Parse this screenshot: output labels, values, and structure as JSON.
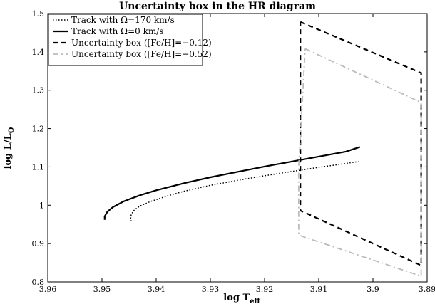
{
  "chart_data": {
    "type": "line",
    "title": "Uncertainty box in the HR diagram",
    "xlabel": "log T",
    "xlabel_sub": "eff",
    "ylabel": "log L/L",
    "ylabel_sub": "O",
    "xlim": [
      3.96,
      3.89
    ],
    "ylim": [
      0.8,
      1.5
    ],
    "x_reversed": true,
    "grid": false,
    "legend_position": "top-left",
    "x_ticks": [
      3.96,
      3.95,
      3.94,
      3.93,
      3.92,
      3.91,
      3.9,
      3.89
    ],
    "x_tick_labels": [
      "3.96",
      "3.95",
      "3.94",
      "3.93",
      "3.92",
      "3.91",
      "3.9",
      "3.89"
    ],
    "y_ticks": [
      0.8,
      0.9,
      1.0,
      1.1,
      1.2,
      1.3,
      1.4,
      1.5
    ],
    "y_tick_labels": [
      "0.8",
      "0.9",
      "1",
      "1.1",
      "1.2",
      "1.3",
      "1.4",
      "1.5"
    ],
    "series": [
      {
        "name": "Track with Ω=170 km/s",
        "style": "dotted",
        "color": "#000000",
        "x": [
          3.9446,
          3.9447,
          3.9446,
          3.944,
          3.943,
          3.941,
          3.938,
          3.935,
          3.93,
          3.925,
          3.92,
          3.915,
          3.91,
          3.905,
          3.9027
        ],
        "y": [
          0.958,
          0.966,
          0.976,
          0.988,
          0.998,
          1.01,
          1.024,
          1.036,
          1.052,
          1.065,
          1.077,
          1.088,
          1.099,
          1.109,
          1.114
        ]
      },
      {
        "name": "Track with Ω=0 km/s",
        "style": "solid",
        "color": "#000000",
        "x": [
          3.9495,
          3.9495,
          3.949,
          3.948,
          3.946,
          3.943,
          3.94,
          3.935,
          3.93,
          3.925,
          3.92,
          3.915,
          3.91,
          3.905,
          3.9024
        ],
        "y": [
          0.962,
          0.971,
          0.983,
          0.995,
          1.01,
          1.026,
          1.039,
          1.057,
          1.073,
          1.087,
          1.101,
          1.114,
          1.127,
          1.14,
          1.152
        ]
      },
      {
        "name": "Uncertainty box ([Fe/H]=−0.12)",
        "style": "dashed",
        "color": "#000000",
        "x": [
          3.9134,
          3.8911,
          3.8911,
          3.9134,
          3.9134
        ],
        "y": [
          1.478,
          1.345,
          0.843,
          0.986,
          1.478
        ]
      },
      {
        "name": "Uncertainty box ([Fe/H]=−0.52)",
        "style": "dashdot",
        "color": "#bbbbbb",
        "x": [
          3.9125,
          3.8911,
          3.8911,
          3.9137,
          3.9137,
          3.9125
        ],
        "y": [
          1.408,
          1.268,
          0.815,
          0.922,
          1.1,
          1.408
        ]
      }
    ]
  }
}
